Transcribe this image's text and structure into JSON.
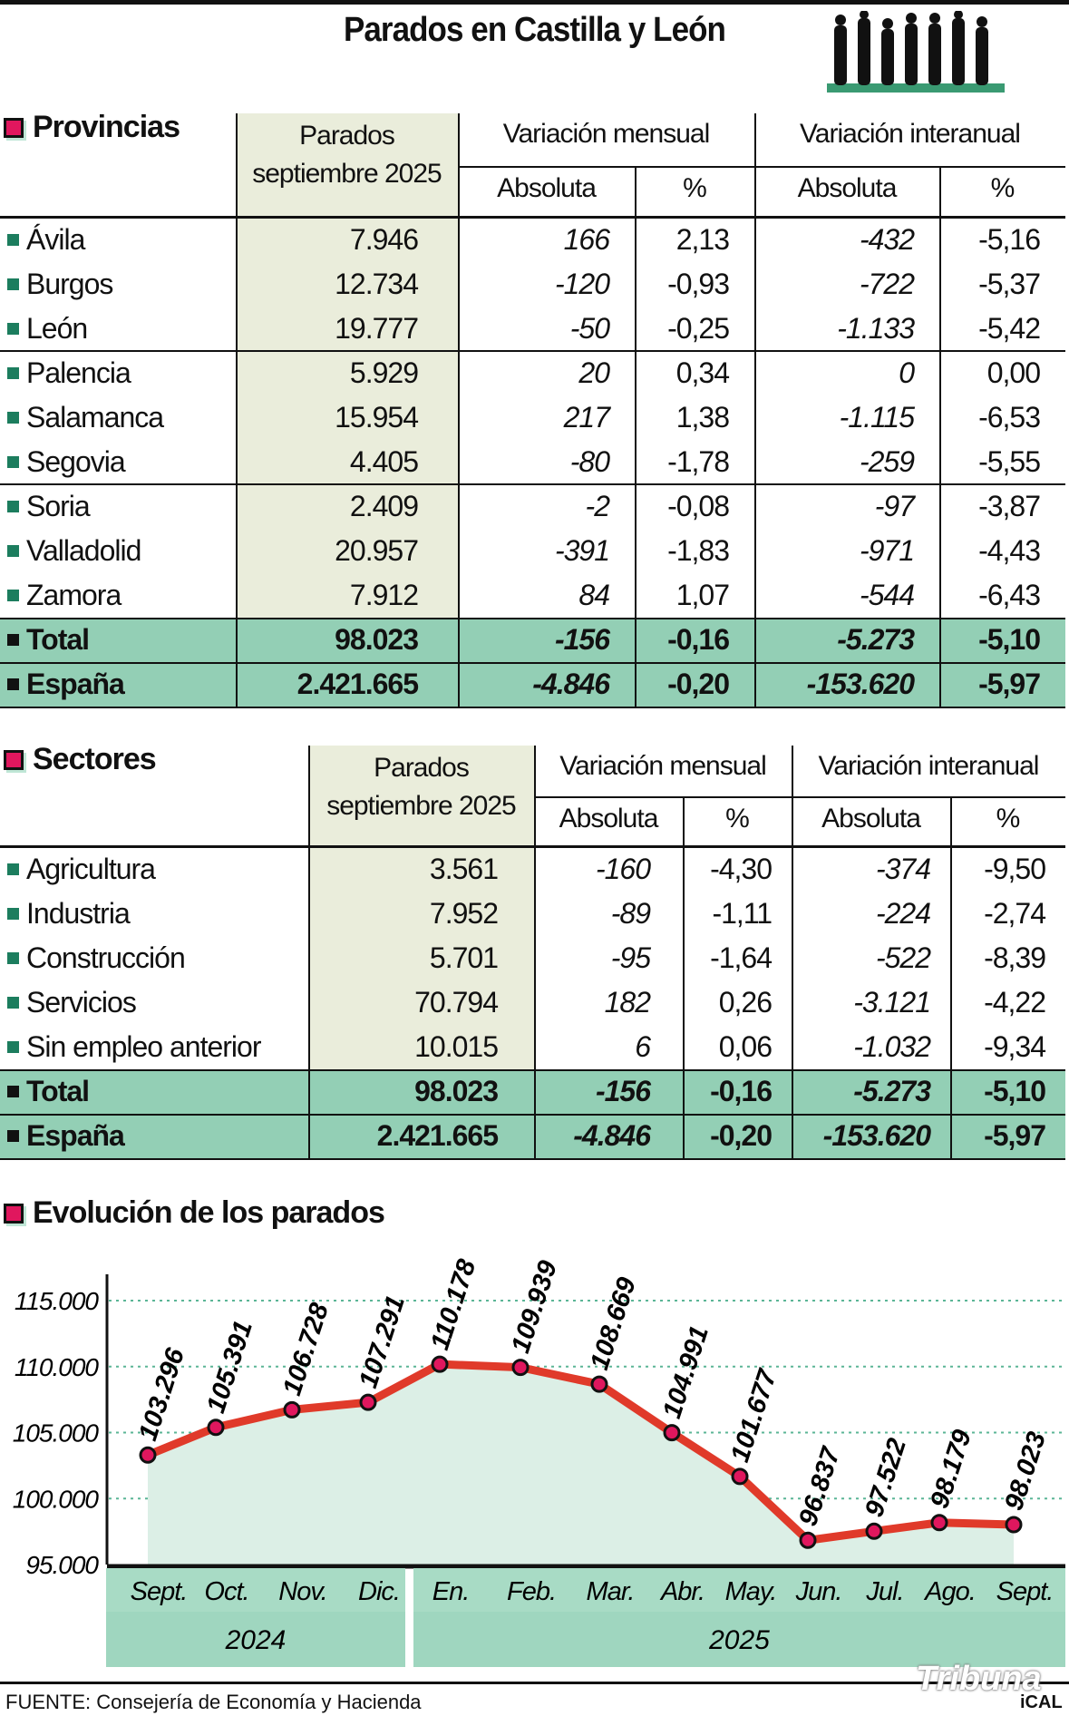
{
  "title": "Parados en Castilla y León",
  "colors": {
    "accent_pink": "#e0175e",
    "row_marker": "#1c7d5e",
    "total_bg": "#93cfb5",
    "column_bg": "#eaeddb",
    "line": "#e03a2a",
    "area": "#dcefe6",
    "band": "#9fd6bf"
  },
  "provincias": {
    "title": "Provincias",
    "headers": {
      "parados": "Parados",
      "parados2": "septiembre 2025",
      "mensual": "Variación mensual",
      "interanual": "Variación interanual",
      "abs": "Absoluta",
      "pct": "%"
    },
    "rows": [
      [
        "Ávila",
        "7.946",
        "166",
        "2,13",
        "-432",
        "-5,16"
      ],
      [
        "Burgos",
        "12.734",
        "-120",
        "-0,93",
        "-722",
        "-5,37"
      ],
      [
        "León",
        "19.777",
        "-50",
        "-0,25",
        "-1.133",
        "-5,42"
      ],
      [
        "Palencia",
        "5.929",
        "20",
        "0,34",
        "0",
        "0,00"
      ],
      [
        "Salamanca",
        "15.954",
        "217",
        "1,38",
        "-1.115",
        "-6,53"
      ],
      [
        "Segovia",
        "4.405",
        "-80",
        "-1,78",
        "-259",
        "-5,55"
      ],
      [
        "Soria",
        "2.409",
        "-2",
        "-0,08",
        "-97",
        "-3,87"
      ],
      [
        "Valladolid",
        "20.957",
        "-391",
        "-1,83",
        "-971",
        "-4,43"
      ],
      [
        "Zamora",
        "7.912",
        "84",
        "1,07",
        "-544",
        "-6,43"
      ]
    ],
    "totals": [
      [
        "Total",
        "98.023",
        "-156",
        "-0,16",
        "-5.273",
        "-5,10"
      ],
      [
        "España",
        "2.421.665",
        "-4.846",
        "-0,20",
        "-153.620",
        "-5,97"
      ]
    ]
  },
  "sectores": {
    "title": "Sectores",
    "headers": {
      "parados": "Parados",
      "parados2": "septiembre 2025",
      "mensual": "Variación mensual",
      "interanual": "Variación interanual",
      "abs": "Absoluta",
      "pct": "%"
    },
    "rows": [
      [
        "Agricultura",
        "3.561",
        "-160",
        "-4,30",
        "-374",
        "-9,50"
      ],
      [
        "Industria",
        "7.952",
        "-89",
        "-1,11",
        "-224",
        "-2,74"
      ],
      [
        "Construcción",
        "5.701",
        "-95",
        "-1,64",
        "-522",
        "-8,39"
      ],
      [
        "Servicios",
        "70.794",
        "182",
        "0,26",
        "-3.121",
        "-4,22"
      ],
      [
        "Sin empleo anterior",
        "10.015",
        "6",
        "0,06",
        "-1.032",
        "-9,34"
      ]
    ],
    "totals": [
      [
        "Total",
        "98.023",
        "-156",
        "-0,16",
        "-5.273",
        "-5,10"
      ],
      [
        "España",
        "2.421.665",
        "-4.846",
        "-0,20",
        "-153.620",
        "-5,97"
      ]
    ]
  },
  "chart_data": {
    "type": "line",
    "title": "Evolución de los parados",
    "categories": [
      "Sept.",
      "Oct.",
      "Nov.",
      "Dic.",
      "En.",
      "Feb.",
      "Mar.",
      "Abr.",
      "May.",
      "Jun.",
      "Jul.",
      "Ago.",
      "Sept."
    ],
    "groups": [
      {
        "label": "2024",
        "count": 4
      },
      {
        "label": "2025",
        "count": 9
      }
    ],
    "values": [
      103296,
      105391,
      106728,
      107291,
      110178,
      109939,
      108669,
      104991,
      101677,
      96837,
      97522,
      98179,
      98023
    ],
    "labels": [
      "103.296",
      "105.391",
      "106.728",
      "107.291",
      "110.178",
      "109.939",
      "108.669",
      "104.991",
      "101.677",
      "96.837",
      "97.522",
      "98.179",
      "98.023"
    ],
    "yticks": [
      95000,
      100000,
      105000,
      110000,
      115000
    ],
    "ytick_labels": [
      "95.000",
      "100.000",
      "105.000",
      "110.000",
      "115.000"
    ],
    "ylim": [
      95000,
      115000
    ],
    "grid": true,
    "area_fill": true
  },
  "footer": {
    "source": "FUENTE: Consejería de Economía y Hacienda",
    "logo": "Tribuna",
    "logo_sub": "iCAL"
  }
}
